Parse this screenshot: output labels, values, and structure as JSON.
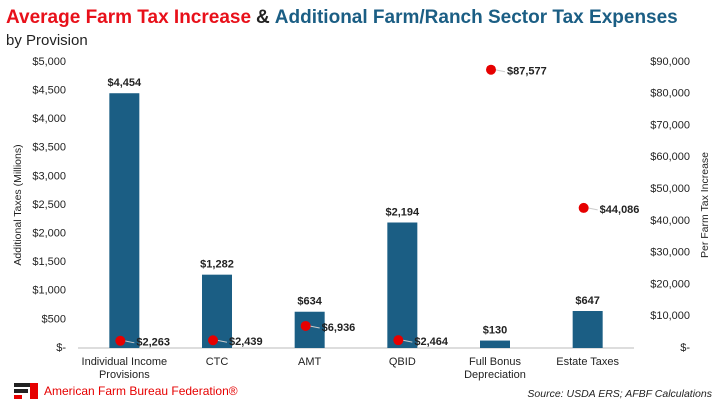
{
  "chart_data": {
    "type": "bar_dot",
    "title": [
      "Average Farm Tax Increase",
      "&",
      "Additional Farm/Ranch Sector Tax Expenses"
    ],
    "title_colors": [
      "#e8101a",
      "#222222",
      "#1b5e84"
    ],
    "subtitle": "by Provision",
    "ylabel": "Additional Taxes (Millions)",
    "y2label": "Per Farm Tax Increase",
    "categories": [
      "Individual Income Provisions",
      "CTC",
      "AMT",
      "QBID",
      "Full Bonus Depreciation",
      "Estate Taxes"
    ],
    "series": [
      {
        "type": "bar",
        "color": "#1b5e84",
        "values": [
          4454,
          1282,
          634,
          2194,
          130,
          647
        ],
        "value_labels": [
          "$4,454",
          "$1,282",
          "$634",
          "$2,194",
          "$130",
          "$647"
        ]
      },
      {
        "type": "dot",
        "axis": "y2",
        "color": "#e60000",
        "values": [
          2263,
          2439,
          6936,
          2464,
          87577,
          44086
        ],
        "value_labels": [
          "$2,263",
          "$2,439",
          "$6,936",
          "$2,464",
          "$87,577",
          "$44,086"
        ]
      }
    ],
    "ylim": [
      0,
      5000
    ],
    "yticks": [
      {
        "value": 0,
        "label": "$-"
      },
      {
        "value": 500,
        "label": "$500"
      },
      {
        "value": 1000,
        "label": "$1,000"
      },
      {
        "value": 1500,
        "label": "$1,500"
      },
      {
        "value": 2000,
        "label": "$2,000"
      },
      {
        "value": 2500,
        "label": "$2,500"
      },
      {
        "value": 3000,
        "label": "$3,000"
      },
      {
        "value": 3500,
        "label": "$3,500"
      },
      {
        "value": 4000,
        "label": "$4,000"
      },
      {
        "value": 4500,
        "label": "$4,500"
      },
      {
        "value": 5000,
        "label": "$5,000"
      }
    ],
    "y2lim": [
      0,
      90000
    ],
    "y2ticks": [
      {
        "value": 0,
        "label": "$-"
      },
      {
        "value": 10000,
        "label": "$10,000"
      },
      {
        "value": 20000,
        "label": "$20,000"
      },
      {
        "value": 30000,
        "label": "$30,000"
      },
      {
        "value": 40000,
        "label": "$40,000"
      },
      {
        "value": 50000,
        "label": "$50,000"
      },
      {
        "value": 60000,
        "label": "$60,000"
      },
      {
        "value": 70000,
        "label": "$70,000"
      },
      {
        "value": 80000,
        "label": "$80,000"
      },
      {
        "value": 90000,
        "label": "$90,000"
      }
    ],
    "grid": false,
    "footer_org": "American Farm Bureau Federation®",
    "source": "Source: USDA ERS; AFBF Calculations"
  }
}
